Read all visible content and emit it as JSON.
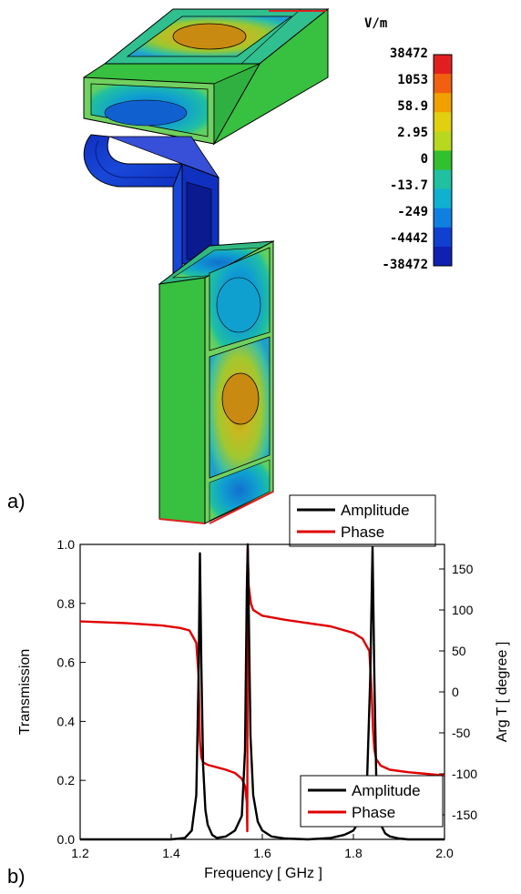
{
  "figure": {
    "panel_a_label": "a)",
    "panel_b_label": "b)"
  },
  "colorbar": {
    "unit": "V/m",
    "ticks": [
      "38472",
      "1053",
      "58.9",
      "2.95",
      "0",
      "-13.7",
      "-249",
      "-4442",
      "-38472"
    ],
    "colors": [
      "#e02020",
      "#f06010",
      "#f0a000",
      "#e0d010",
      "#b8d820",
      "#30c030",
      "#20c0a0",
      "#10b0d0",
      "#1080e0",
      "#1040d0",
      "#1020b0"
    ]
  },
  "top_legend": {
    "items": [
      {
        "label": "Amplitude",
        "color": "#000000"
      },
      {
        "label": "Phase",
        "color": "#e00000"
      }
    ]
  },
  "chart_data": {
    "type": "line",
    "xlabel": "Frequency [ GHz ]",
    "ylabel": "Transmission",
    "y2label": "Arg T [ degree ]",
    "xlim": [
      1.2,
      2.0
    ],
    "ylim": [
      0.0,
      1.0
    ],
    "y2lim": [
      -180,
      180
    ],
    "xticks": [
      "1.2",
      "1.4",
      "1.6",
      "1.8",
      "2.0"
    ],
    "yticks": [
      "0.0",
      "0.2",
      "0.4",
      "0.6",
      "0.8",
      "1.0"
    ],
    "y2ticks": [
      "150",
      "100",
      "50",
      "0",
      "-50",
      "-100",
      "-150"
    ],
    "legend_position": "bottom-right",
    "series": [
      {
        "name": "Amplitude",
        "color": "#000000",
        "axis": "left",
        "x": [
          1.2,
          1.4,
          1.43,
          1.445,
          1.455,
          1.46,
          1.463,
          1.466,
          1.47,
          1.475,
          1.48,
          1.49,
          1.5,
          1.52,
          1.54,
          1.555,
          1.562,
          1.566,
          1.568,
          1.57,
          1.574,
          1.58,
          1.59,
          1.6,
          1.62,
          1.65,
          1.7,
          1.75,
          1.78,
          1.8,
          1.82,
          1.83,
          1.837,
          1.842,
          1.846,
          1.85,
          1.855,
          1.86,
          1.87,
          1.88,
          1.9,
          1.92,
          2.0
        ],
        "y": [
          0.0,
          0.0,
          0.005,
          0.03,
          0.15,
          0.55,
          0.97,
          0.6,
          0.25,
          0.1,
          0.05,
          0.015,
          0.005,
          0.01,
          0.03,
          0.08,
          0.3,
          0.85,
          1.0,
          0.8,
          0.35,
          0.15,
          0.06,
          0.03,
          0.01,
          0.003,
          0.0,
          0.005,
          0.015,
          0.03,
          0.08,
          0.2,
          0.55,
          0.99,
          0.55,
          0.22,
          0.1,
          0.05,
          0.02,
          0.01,
          0.003,
          0.0,
          0.0
        ]
      },
      {
        "name": "Phase",
        "color": "#e00000",
        "axis": "right",
        "x": [
          1.2,
          1.3,
          1.38,
          1.42,
          1.44,
          1.455,
          1.46,
          1.463,
          1.466,
          1.47,
          1.48,
          1.5,
          1.52,
          1.54,
          1.555,
          1.562,
          1.566,
          1.567,
          1.568,
          1.569,
          1.57,
          1.575,
          1.58,
          1.6,
          1.65,
          1.7,
          1.75,
          1.8,
          1.82,
          1.835,
          1.84,
          1.843,
          1.846,
          1.85,
          1.86,
          1.88,
          1.92,
          1.96,
          2.0
        ],
        "y": [
          86,
          84,
          81,
          78,
          75,
          60,
          20,
          -60,
          -80,
          -86,
          -89,
          -92,
          -95,
          -99,
          -106,
          -115,
          -135,
          -170,
          175,
          150,
          130,
          108,
          100,
          93,
          88,
          84,
          80,
          72,
          65,
          50,
          0,
          -45,
          -70,
          -82,
          -90,
          -95,
          -98,
          -100,
          -102
        ]
      }
    ]
  }
}
